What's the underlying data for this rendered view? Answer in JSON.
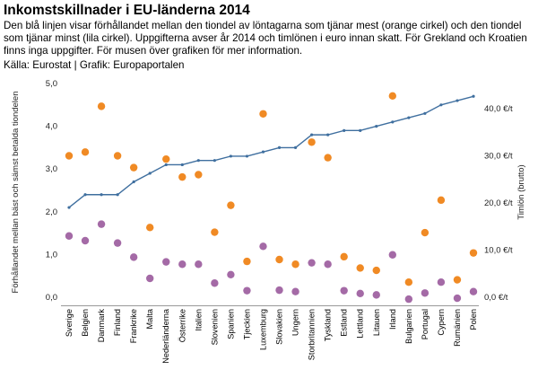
{
  "title": "Inkomstskillnader i EU-länderna 2014",
  "subtitle": "Den blå linjen visar förhållandet mellan den tiondel av löntagarna som tjänar mest (orange cirkel) och den tiondel som tjänar minst (lila cirkel). Uppgifterna avser år 2014 och timlönen i euro innan skatt. För Grekland och Kroatien finns inga uppgifter. För musen över grafiken för mer information.",
  "source": "Källa: Eurostat | Grafik: Europaportalen",
  "colors": {
    "ratio_line": "#3f6f9f",
    "top_decile": "#f08a24",
    "bottom_decile": "#a46aa6",
    "axis": "#999999"
  },
  "chart_data": {
    "type": "line",
    "categories": [
      "Sverige",
      "Belgien",
      "Danmark",
      "Finland",
      "Frankrike",
      "Malta",
      "Nederländerna",
      "Österrike",
      "Italien",
      "Slovenien",
      "Spanien",
      "Tjeckien",
      "Luxemburg",
      "Slovakien",
      "Ungern",
      "Storbritannien",
      "Tyskland",
      "Estland",
      "Lettland",
      "Litauen",
      "Irland",
      "Bulgarien",
      "Portugal",
      "Cypern",
      "Rumänien",
      "Polen"
    ],
    "left_axis": {
      "label": "Förhållandet mellan bäst och sämst betalda tiondelen",
      "ylim": [
        0,
        5
      ],
      "ticks": [
        "0,0",
        "1,0",
        "2,0",
        "3,0",
        "4,0",
        "5,0"
      ]
    },
    "right_axis": {
      "label": "Timlön (brutto)",
      "ylim": [
        0,
        50
      ],
      "ticks": [
        "0,0 €/t",
        "10,0 €/t",
        "20,0 €/t",
        "30,0 €/t",
        "40,0 €/t"
      ]
    },
    "series": [
      {
        "key": "ratio",
        "axis": "left",
        "style": "line",
        "values": [
          2.1,
          2.4,
          2.4,
          2.4,
          2.7,
          2.9,
          3.1,
          3.1,
          3.2,
          3.2,
          3.3,
          3.3,
          3.4,
          3.5,
          3.5,
          3.8,
          3.8,
          3.9,
          3.9,
          4.0,
          4.1,
          4.2,
          4.3,
          4.5,
          4.6,
          4.7
        ]
      },
      {
        "key": "top",
        "axis": "right",
        "style": "dots",
        "values": [
          30.0,
          30.8,
          40.5,
          30.0,
          27.5,
          14.8,
          29.3,
          25.5,
          26.0,
          13.8,
          19.5,
          7.6,
          38.9,
          8.0,
          7.0,
          32.9,
          29.6,
          8.6,
          6.2,
          5.7,
          42.7,
          3.2,
          13.7,
          20.6,
          3.7,
          9.4
        ]
      },
      {
        "key": "bottom",
        "axis": "right",
        "style": "dots",
        "values": [
          13.0,
          12.0,
          15.5,
          11.5,
          8.5,
          4.0,
          7.5,
          7.0,
          7.0,
          3.0,
          4.8,
          1.4,
          10.8,
          1.5,
          1.2,
          7.3,
          7.0,
          1.4,
          0.8,
          0.5,
          9.0,
          -0.4,
          0.9,
          3.2,
          -0.2,
          1.2
        ]
      }
    ]
  }
}
